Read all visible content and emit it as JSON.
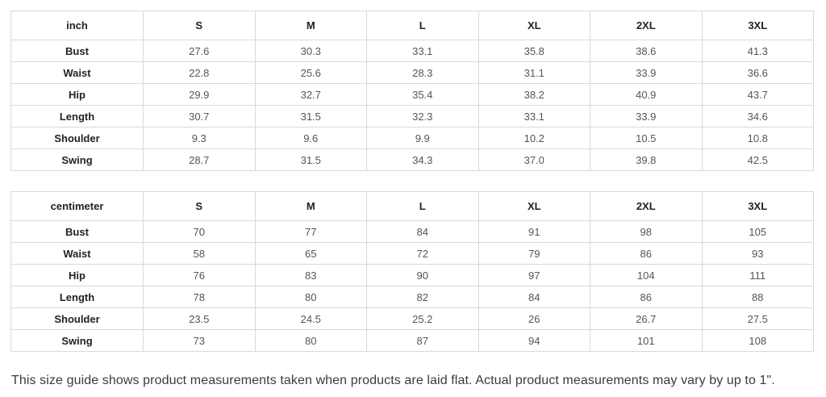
{
  "note": "This size guide shows product measurements taken when products are laid flat. Actual product measurements may vary by up to 1\".",
  "colors": {
    "background": "#ffffff",
    "border": "#d9d9d9",
    "label_text": "#222222",
    "value_text": "#555555",
    "note_text": "#3b3b3b"
  },
  "chart_data": [
    {
      "type": "table",
      "title": "inch",
      "unit_label": "inch",
      "size_headers": [
        "S",
        "M",
        "L",
        "XL",
        "2XL",
        "3XL"
      ],
      "rows": [
        {
          "label": "Bust",
          "values": [
            "27.6",
            "30.3",
            "33.1",
            "35.8",
            "38.6",
            "41.3"
          ]
        },
        {
          "label": "Waist",
          "values": [
            "22.8",
            "25.6",
            "28.3",
            "31.1",
            "33.9",
            "36.6"
          ]
        },
        {
          "label": "Hip",
          "values": [
            "29.9",
            "32.7",
            "35.4",
            "38.2",
            "40.9",
            "43.7"
          ]
        },
        {
          "label": "Length",
          "values": [
            "30.7",
            "31.5",
            "32.3",
            "33.1",
            "33.9",
            "34.6"
          ]
        },
        {
          "label": "Shoulder",
          "values": [
            "9.3",
            "9.6",
            "9.9",
            "10.2",
            "10.5",
            "10.8"
          ]
        },
        {
          "label": "Swing",
          "values": [
            "28.7",
            "31.5",
            "34.3",
            "37.0",
            "39.8",
            "42.5"
          ]
        }
      ]
    },
    {
      "type": "table",
      "title": "centimeter",
      "unit_label": "centimeter",
      "size_headers": [
        "S",
        "M",
        "L",
        "XL",
        "2XL",
        "3XL"
      ],
      "rows": [
        {
          "label": "Bust",
          "values": [
            "70",
            "77",
            "84",
            "91",
            "98",
            "105"
          ]
        },
        {
          "label": "Waist",
          "values": [
            "58",
            "65",
            "72",
            "79",
            "86",
            "93"
          ]
        },
        {
          "label": "Hip",
          "values": [
            "76",
            "83",
            "90",
            "97",
            "104",
            "111"
          ]
        },
        {
          "label": "Length",
          "values": [
            "78",
            "80",
            "82",
            "84",
            "86",
            "88"
          ]
        },
        {
          "label": "Shoulder",
          "values": [
            "23.5",
            "24.5",
            "25.2",
            "26",
            "26.7",
            "27.5"
          ]
        },
        {
          "label": "Swing",
          "values": [
            "73",
            "80",
            "87",
            "94",
            "101",
            "108"
          ]
        }
      ]
    }
  ]
}
